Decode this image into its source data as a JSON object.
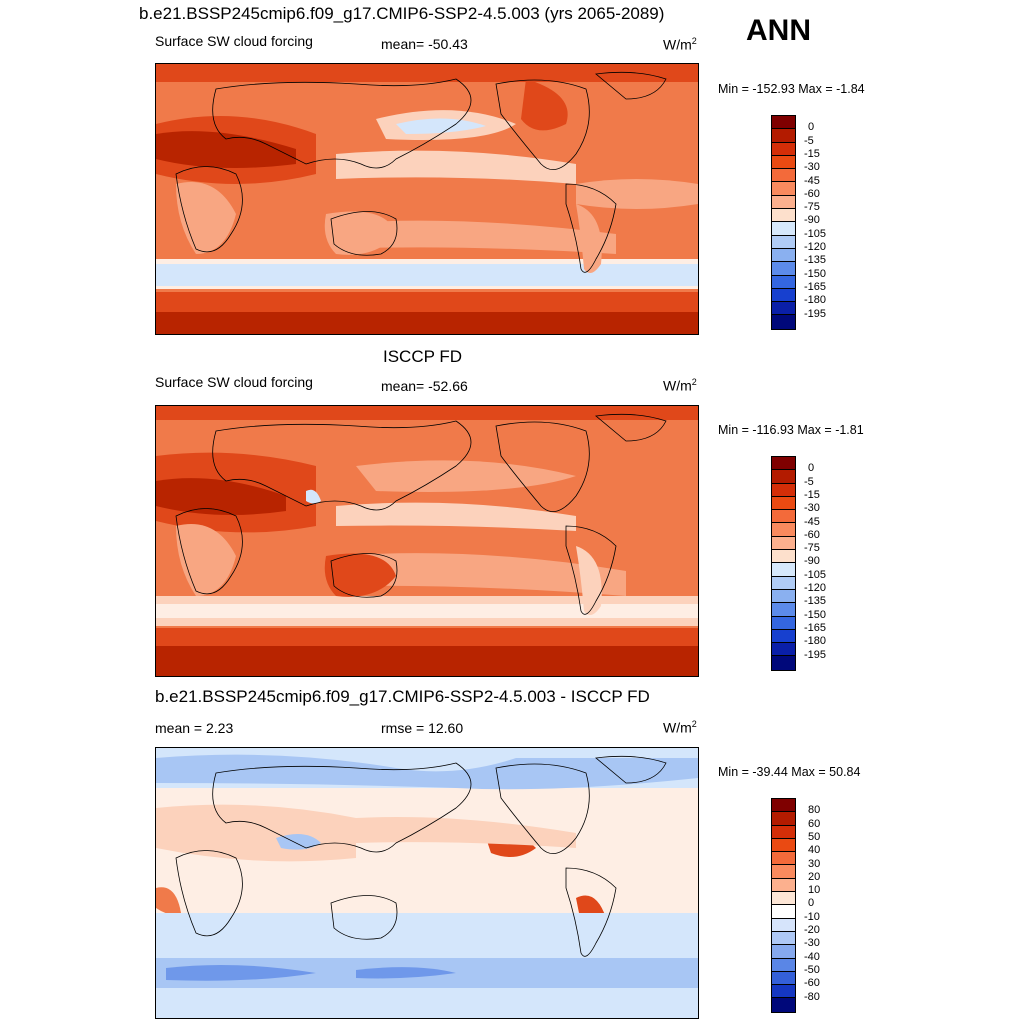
{
  "season": "ANN",
  "panels": [
    {
      "title": "b.e21.BSSP245cmip6.f09_g17.CMIP6-SSP2-4.5.003 (yrs 2065-2089)",
      "variable": "Surface SW cloud forcing",
      "stat": "mean= -50.43",
      "units": "W/m",
      "units_sup": "2",
      "minmax": "Min = -152.93 Max =  -1.84",
      "colorbar": {
        "labels": [
          "0",
          "-5",
          "-15",
          "-30",
          "-45",
          "-60",
          "-75",
          "-90",
          "-105",
          "-120",
          "-135",
          "-150",
          "-165",
          "-180",
          "-195"
        ],
        "colors": [
          "#7f0000",
          "#b31b00",
          "#d42e08",
          "#ea4a12",
          "#f36a3a",
          "#f98a5e",
          "#fcb08e",
          "#fde0cc",
          "#d6e8fb",
          "#b0ccf6",
          "#8ab0f0",
          "#5c8bea",
          "#3466e0",
          "#1740cf",
          "#0a1fa8",
          "#00087a"
        ]
      }
    },
    {
      "title": "ISCCP FD",
      "variable": "Surface SW cloud forcing",
      "stat": "mean= -52.66",
      "units": "W/m",
      "units_sup": "2",
      "minmax": "Min = -116.93 Max =  -1.81",
      "colorbar": {
        "labels": [
          "0",
          "-5",
          "-15",
          "-30",
          "-45",
          "-60",
          "-75",
          "-90",
          "-105",
          "-120",
          "-135",
          "-150",
          "-165",
          "-180",
          "-195"
        ],
        "colors": [
          "#7f0000",
          "#b31b00",
          "#d42e08",
          "#ea4a12",
          "#f36a3a",
          "#f98a5e",
          "#fcb08e",
          "#fde0cc",
          "#d6e8fb",
          "#b0ccf6",
          "#8ab0f0",
          "#5c8bea",
          "#3466e0",
          "#1740cf",
          "#0a1fa8",
          "#00087a"
        ]
      }
    },
    {
      "title": "b.e21.BSSP245cmip6.f09_g17.CMIP6-SSP2-4.5.003 - ISCCP FD",
      "mean_label": "mean =   2.23",
      "stat": "rmse =  12.60",
      "units": "W/m",
      "units_sup": "2",
      "minmax": "Min = -39.44 Max =  50.84",
      "colorbar": {
        "labels": [
          "80",
          "60",
          "50",
          "40",
          "30",
          "20",
          "10",
          "0",
          "-10",
          "-20",
          "-30",
          "-40",
          "-50",
          "-60",
          "-80"
        ],
        "colors": [
          "#7f0000",
          "#b31b00",
          "#d42e08",
          "#ea4a12",
          "#f36a3a",
          "#f98a5e",
          "#fcb08e",
          "#fde6d6",
          "#ffffff",
          "#d6e4fb",
          "#aec8f5",
          "#86a9ee",
          "#5a86e6",
          "#3460d9",
          "#1537c2",
          "#00087a"
        ]
      }
    }
  ],
  "map_colors": {
    "deep": "#b82400",
    "strong": "#e0481a",
    "medium": "#f07a4a",
    "light": "#f8a682",
    "pale": "#fcd2bc",
    "cream": "#feeee4",
    "blue_pale": "#d4e6fb",
    "blue_light": "#a8c6f4",
    "blue_mid": "#6f98ea",
    "blue_strong": "#3d6ee0"
  }
}
